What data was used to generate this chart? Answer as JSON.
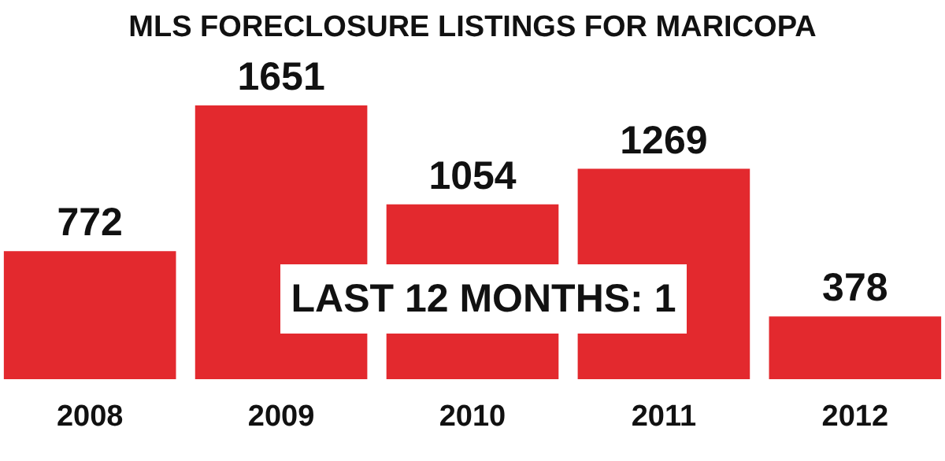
{
  "chart_data": {
    "type": "bar",
    "title": "MLS FORECLOSURE LISTINGS FOR MARICOPA",
    "categories": [
      "2008",
      "2009",
      "2010",
      "2011",
      "2012"
    ],
    "values": [
      772,
      1651,
      1054,
      1269,
      378
    ],
    "color": "#e3292e",
    "data_labels": true,
    "annotations": [
      "LAST 12 MONTHS: 1"
    ]
  }
}
